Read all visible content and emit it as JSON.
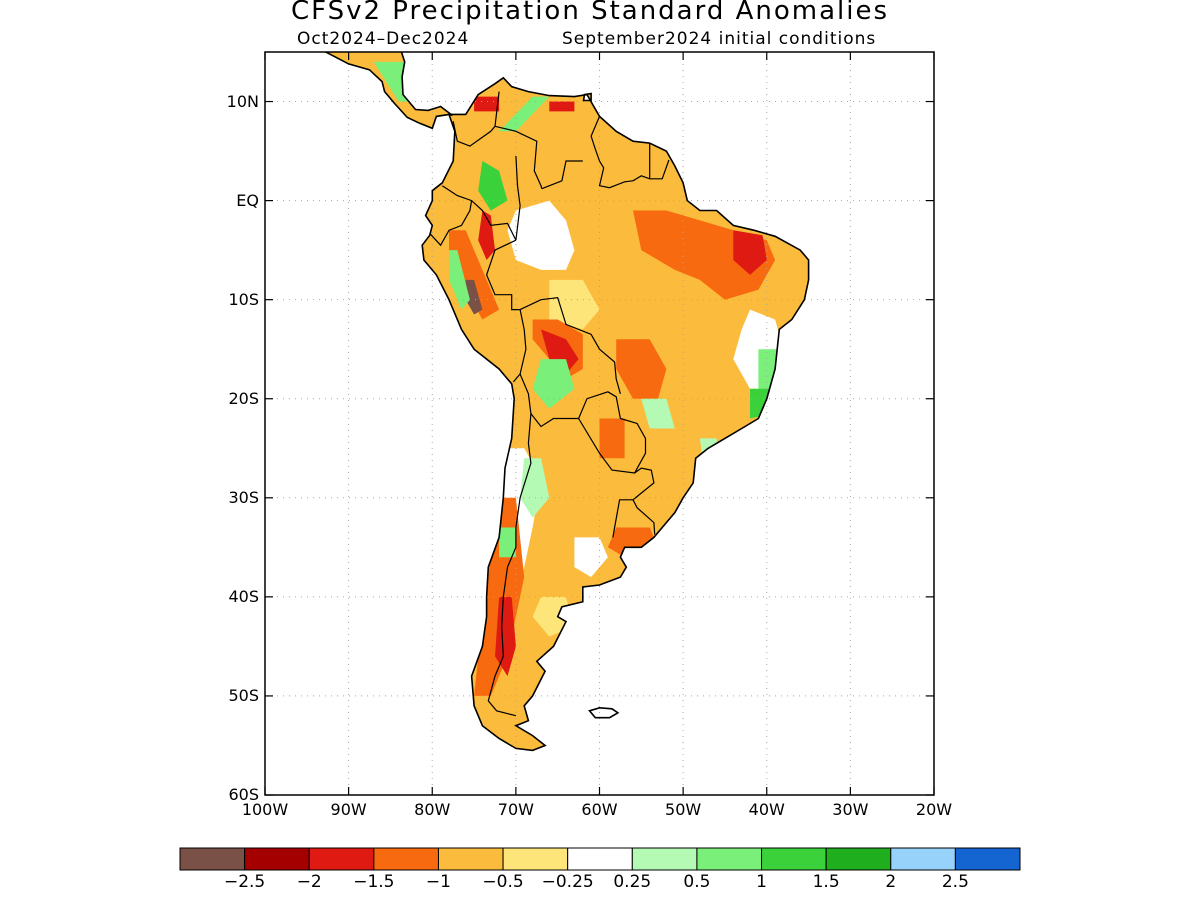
{
  "header": {
    "title": "CFSv2 Precipitation Standard Anomalies",
    "period": "Oct2024–Dec2024",
    "init": "September2024 initial conditions"
  },
  "map": {
    "lon_range": [
      -100,
      -20
    ],
    "lat_range": [
      -60,
      15
    ],
    "lat_ticks": [
      {
        "value": 10,
        "label": "10N"
      },
      {
        "value": 0,
        "label": "EQ"
      },
      {
        "value": -10,
        "label": "10S"
      },
      {
        "value": -20,
        "label": "20S"
      },
      {
        "value": -30,
        "label": "30S"
      },
      {
        "value": -40,
        "label": "40S"
      },
      {
        "value": -50,
        "label": "50S"
      },
      {
        "value": -60,
        "label": "60S"
      }
    ],
    "lon_ticks": [
      {
        "value": -100,
        "label": "100W"
      },
      {
        "value": -90,
        "label": "90W"
      },
      {
        "value": -80,
        "label": "80W"
      },
      {
        "value": -70,
        "label": "70W"
      },
      {
        "value": -60,
        "label": "60W"
      },
      {
        "value": -50,
        "label": "50W"
      },
      {
        "value": -40,
        "label": "40W"
      },
      {
        "value": -30,
        "label": "30W"
      },
      {
        "value": -20,
        "label": "20W"
      }
    ],
    "grid": true
  },
  "colorbar": {
    "colors": [
      "#7a5147",
      "#a50000",
      "#de1a12",
      "#f76a10",
      "#fbbb3c",
      "#fde57a",
      "#ffffff",
      "#b4fab4",
      "#7af07a",
      "#3ad13a",
      "#1eae1e",
      "#96d2fa",
      "#1464d2"
    ],
    "labels": [
      "−2.5",
      "−2",
      "−1.5",
      "−1",
      "−0.5",
      "−0.25",
      "0.25",
      "0.5",
      "1",
      "1.5",
      "2",
      "2.5"
    ]
  }
}
